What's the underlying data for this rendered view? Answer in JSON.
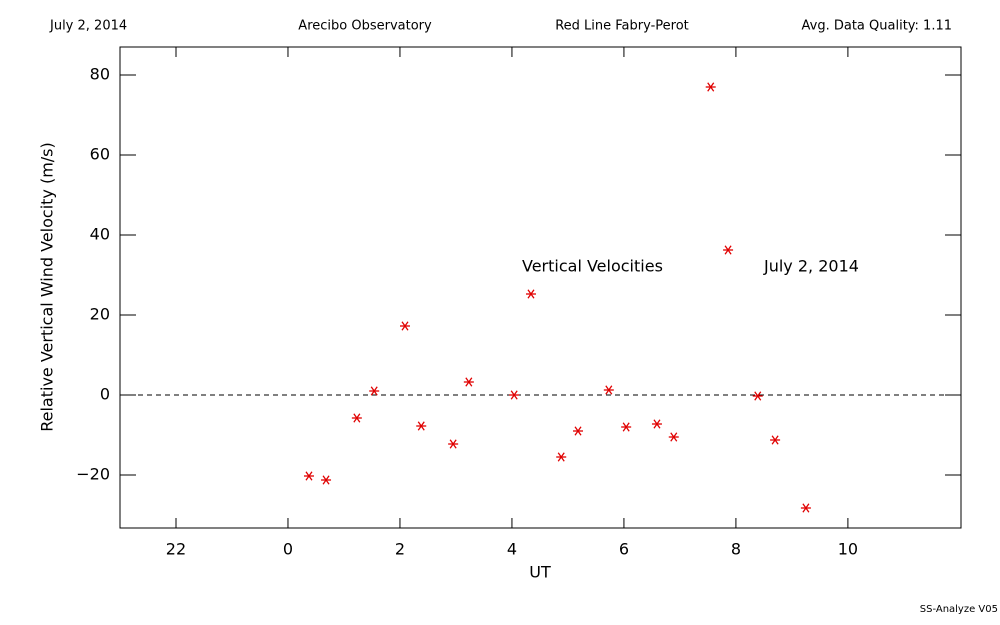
{
  "chart_data": {
    "type": "scatter",
    "header": [
      "July 2, 2014",
      "Arecibo Observatory",
      "Red Line Fabry-Perot",
      "Avg. Data Quality: 1.11"
    ],
    "xlabel": "UT",
    "ylabel": "Relative Vertical Wind Velocity (m/s)",
    "annotations": [
      "Vertical Velocities",
      "July 2, 2014"
    ],
    "footer": "SS-Analyze V05",
    "color": "#e00000",
    "reference_line": 0,
    "x": [
      0.375,
      0.68,
      1.23,
      1.54,
      2.09,
      2.38,
      2.95,
      3.23,
      4.04,
      4.34,
      4.88,
      5.18,
      5.73,
      6.04,
      6.59,
      6.89,
      7.55,
      7.86,
      8.39,
      8.7,
      9.25
    ],
    "values": [
      -20.25,
      -21.25,
      -5.75,
      1,
      17.25,
      -7.75,
      -12.25,
      3.25,
      0,
      25.25,
      -15.5,
      -9,
      1.25,
      -8,
      -7.25,
      -10.5,
      77,
      36.25,
      -0.25,
      -11.25,
      -28.25
    ],
    "xlim": [
      -3,
      12.02
    ],
    "xticks": [
      {
        "value": -2,
        "label": "22"
      },
      0,
      2,
      4,
      6,
      8,
      10
    ],
    "ylim": [
      -33.25,
      87
    ],
    "yticks": [
      {
        "value": -20,
        "label": "−20"
      },
      0,
      20,
      40,
      60,
      80
    ]
  }
}
